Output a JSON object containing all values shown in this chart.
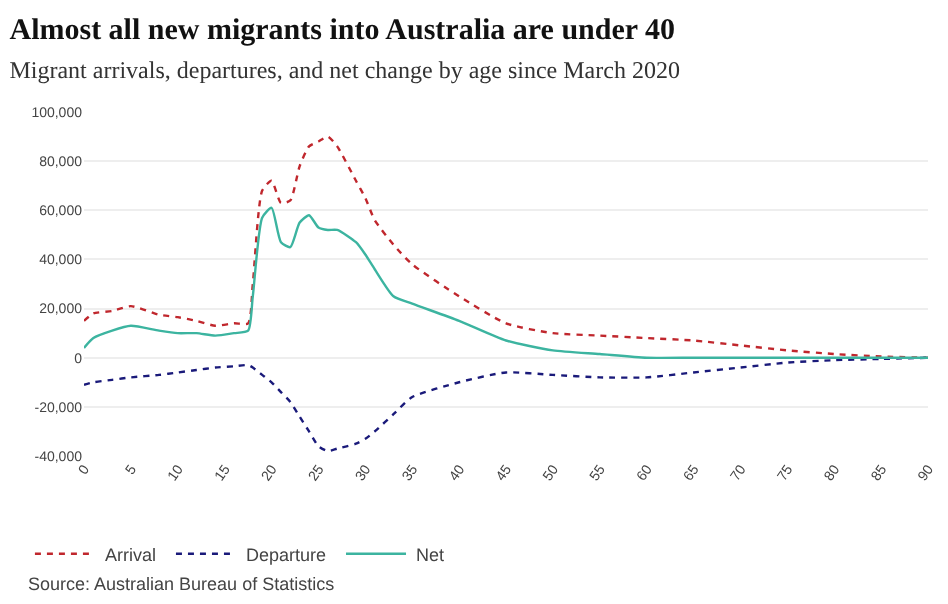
{
  "chart_data": {
    "type": "line",
    "title": "Almost all new migrants into Australia are under 40",
    "subtitle": "Migrant arrivals, departures, and net change by age since March 2020",
    "x": [
      0,
      1,
      3,
      5,
      8,
      10,
      12,
      14,
      16,
      17.5,
      18,
      19,
      20,
      21,
      22,
      23,
      24,
      25,
      26,
      27,
      29,
      30,
      31,
      33,
      35,
      40,
      45,
      50,
      55,
      60,
      65,
      70,
      75,
      80,
      85,
      90
    ],
    "series": [
      {
        "name": "Arrival",
        "color": "#c0272d",
        "line_style": "dashed",
        "values": [
          15000,
          18000,
          19000,
          21000,
          17500,
          16500,
          15000,
          13000,
          14000,
          14000,
          30000,
          68000,
          72000,
          63000,
          64000,
          78000,
          86000,
          88000,
          90000,
          86000,
          72000,
          65000,
          56000,
          46000,
          38000,
          25000,
          14000,
          10000,
          9000,
          8000,
          7000,
          5000,
          3000,
          1500,
          500,
          0
        ]
      },
      {
        "name": "Departure",
        "color": "#1a1a7a",
        "line_style": "dashed",
        "values": [
          -11000,
          -10000,
          -9000,
          -8000,
          -7000,
          -6000,
          -5000,
          -4000,
          -3500,
          -3000,
          -4000,
          -7000,
          -10000,
          -14000,
          -18000,
          -24000,
          -30000,
          -36000,
          -38000,
          -37000,
          -35000,
          -33000,
          -30000,
          -23000,
          -16000,
          -10000,
          -6000,
          -7000,
          -8000,
          -8000,
          -6000,
          -4000,
          -2000,
          -1000,
          -500,
          0
        ]
      },
      {
        "name": "Net",
        "color": "#3cb4a0",
        "line_style": "solid",
        "values": [
          4000,
          8000,
          11000,
          13000,
          11000,
          10000,
          10000,
          9000,
          10000,
          11000,
          25000,
          57000,
          61000,
          47000,
          45000,
          55000,
          58000,
          53000,
          52000,
          52000,
          47000,
          42000,
          36000,
          25000,
          22000,
          15000,
          7000,
          3000,
          1500,
          0,
          0,
          0,
          0,
          0,
          0,
          0
        ]
      }
    ],
    "xlim": [
      0,
      90
    ],
    "xticks": [
      0,
      5,
      10,
      15,
      20,
      25,
      30,
      35,
      40,
      45,
      50,
      55,
      60,
      65,
      70,
      75,
      80,
      85,
      90
    ],
    "ylim": [
      -40000,
      100000
    ],
    "yticks": [
      {
        "value": -40000,
        "label": "-40,000"
      },
      {
        "value": -20000,
        "label": "-20,000"
      },
      0,
      {
        "value": 20000,
        "label": "20,000"
      },
      {
        "value": 40000,
        "label": "40,000"
      },
      {
        "value": 60000,
        "label": "60,000"
      },
      {
        "value": 80000,
        "label": "80,000"
      },
      {
        "value": 100000,
        "label": "100,000"
      }
    ],
    "grid": "y",
    "legend": "bottom left",
    "marker": "none",
    "annotations": [
      "Source: Australian Bureau of Statistics"
    ]
  }
}
